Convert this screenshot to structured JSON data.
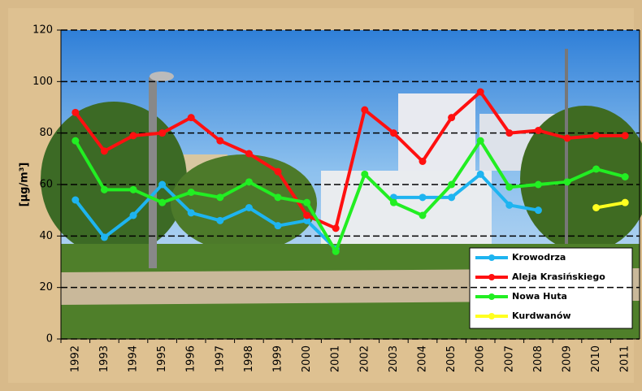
{
  "chart_data": {
    "type": "line",
    "y_label": "[μg/m³]",
    "categories": [
      "1992",
      "1993",
      "1994",
      "1995",
      "1996",
      "1997",
      "1998",
      "1999",
      "2000",
      "2001",
      "2002",
      "2003",
      "2004",
      "2005",
      "2006",
      "2007",
      "2008",
      "2009",
      "2010",
      "2011"
    ],
    "series": [
      {
        "name": "Krowodrza",
        "color": "#1eb4f0",
        "values": [
          54,
          39.5,
          48,
          60,
          49,
          46,
          51,
          44,
          46,
          35,
          null,
          55,
          55,
          55,
          64,
          52,
          50,
          null,
          null,
          null
        ]
      },
      {
        "name": "Aleja Krasińskiego",
        "color": "#ff1010",
        "values": [
          88,
          73,
          79,
          80,
          86,
          77,
          72,
          65,
          48,
          43,
          89,
          80,
          69,
          86,
          96,
          80,
          81,
          78,
          79,
          79
        ]
      },
      {
        "name": "Nowa Huta",
        "color": "#22ee22",
        "values": [
          77,
          58,
          58,
          53,
          57,
          55,
          61,
          55,
          53,
          34,
          64,
          53,
          48,
          60,
          77,
          59,
          60,
          61,
          66,
          63
        ]
      },
      {
        "name": "Kurdwanów",
        "color": "#ffff20",
        "values": [
          null,
          null,
          null,
          null,
          null,
          null,
          null,
          null,
          null,
          null,
          null,
          null,
          null,
          null,
          null,
          null,
          null,
          null,
          51,
          53
        ]
      }
    ],
    "ylim": [
      0,
      120
    ],
    "yticks": [
      0,
      20,
      40,
      60,
      80,
      100,
      120
    ],
    "grid": true,
    "legend": "lower right"
  }
}
